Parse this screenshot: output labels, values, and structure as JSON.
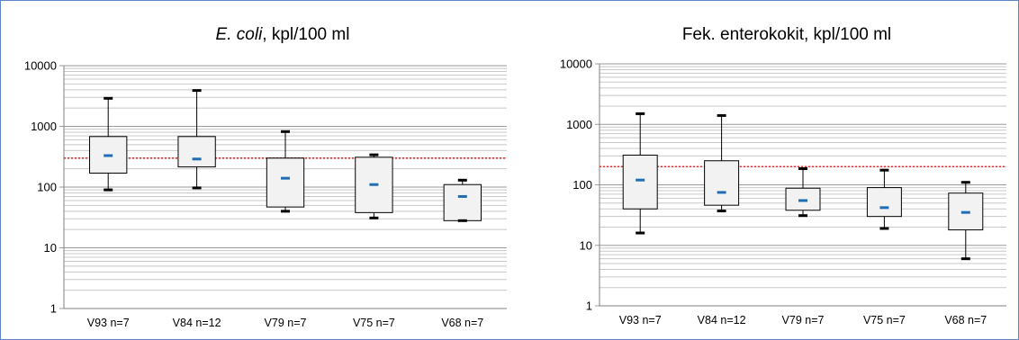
{
  "chart_data": [
    {
      "type": "box",
      "title_italic": "E. coli",
      "title_rest": ", kpl/100 ml",
      "y_scale": "log",
      "ylim": [
        1,
        10000
      ],
      "y_ticks": [
        "1",
        "10",
        "100",
        "1000",
        "10000"
      ],
      "grid": "minor horizontal (log decades)",
      "reference_line": {
        "value": 300,
        "color": "#e03030",
        "style": "dotted"
      },
      "categories": [
        "V93 n=7",
        "V84 n=12",
        "V79 n=7",
        "V75 n=7",
        "V68 n=7"
      ],
      "boxes": [
        {
          "min": 90,
          "q1": 170,
          "median": 330,
          "q3": 680,
          "max": 2900
        },
        {
          "min": 97,
          "q1": 215,
          "median": 290,
          "q3": 680,
          "max": 3900
        },
        {
          "min": 40,
          "q1": 47,
          "median": 140,
          "q3": 300,
          "max": 820
        },
        {
          "min": 31,
          "q1": 38,
          "median": 110,
          "q3": 310,
          "max": 340
        },
        {
          "min": 28,
          "q1": 28,
          "median": 70,
          "q3": 110,
          "max": 130
        }
      ]
    },
    {
      "type": "box",
      "title_italic": "",
      "title_rest": "Fek. enterokokit, kpl/100 ml",
      "y_scale": "log",
      "ylim": [
        1,
        10000
      ],
      "y_ticks": [
        "1",
        "10",
        "100",
        "1000",
        "10000"
      ],
      "grid": "minor horizontal (log decades)",
      "reference_line": {
        "value": 200,
        "color": "#e03030",
        "style": "dotted"
      },
      "categories": [
        "V93 n=7",
        "V84 n=12",
        "V79 n=7",
        "V75 n=7",
        "V68 n=7"
      ],
      "boxes": [
        {
          "min": 16,
          "q1": 40,
          "median": 120,
          "q3": 310,
          "max": 1500
        },
        {
          "min": 37,
          "q1": 46,
          "median": 75,
          "q3": 250,
          "max": 1400
        },
        {
          "min": 31,
          "q1": 38,
          "median": 55,
          "q3": 88,
          "max": 185
        },
        {
          "min": 19,
          "q1": 30,
          "median": 42,
          "q3": 90,
          "max": 175
        },
        {
          "min": 6,
          "q1": 18,
          "median": 35,
          "q3": 73,
          "max": 110
        }
      ]
    }
  ]
}
